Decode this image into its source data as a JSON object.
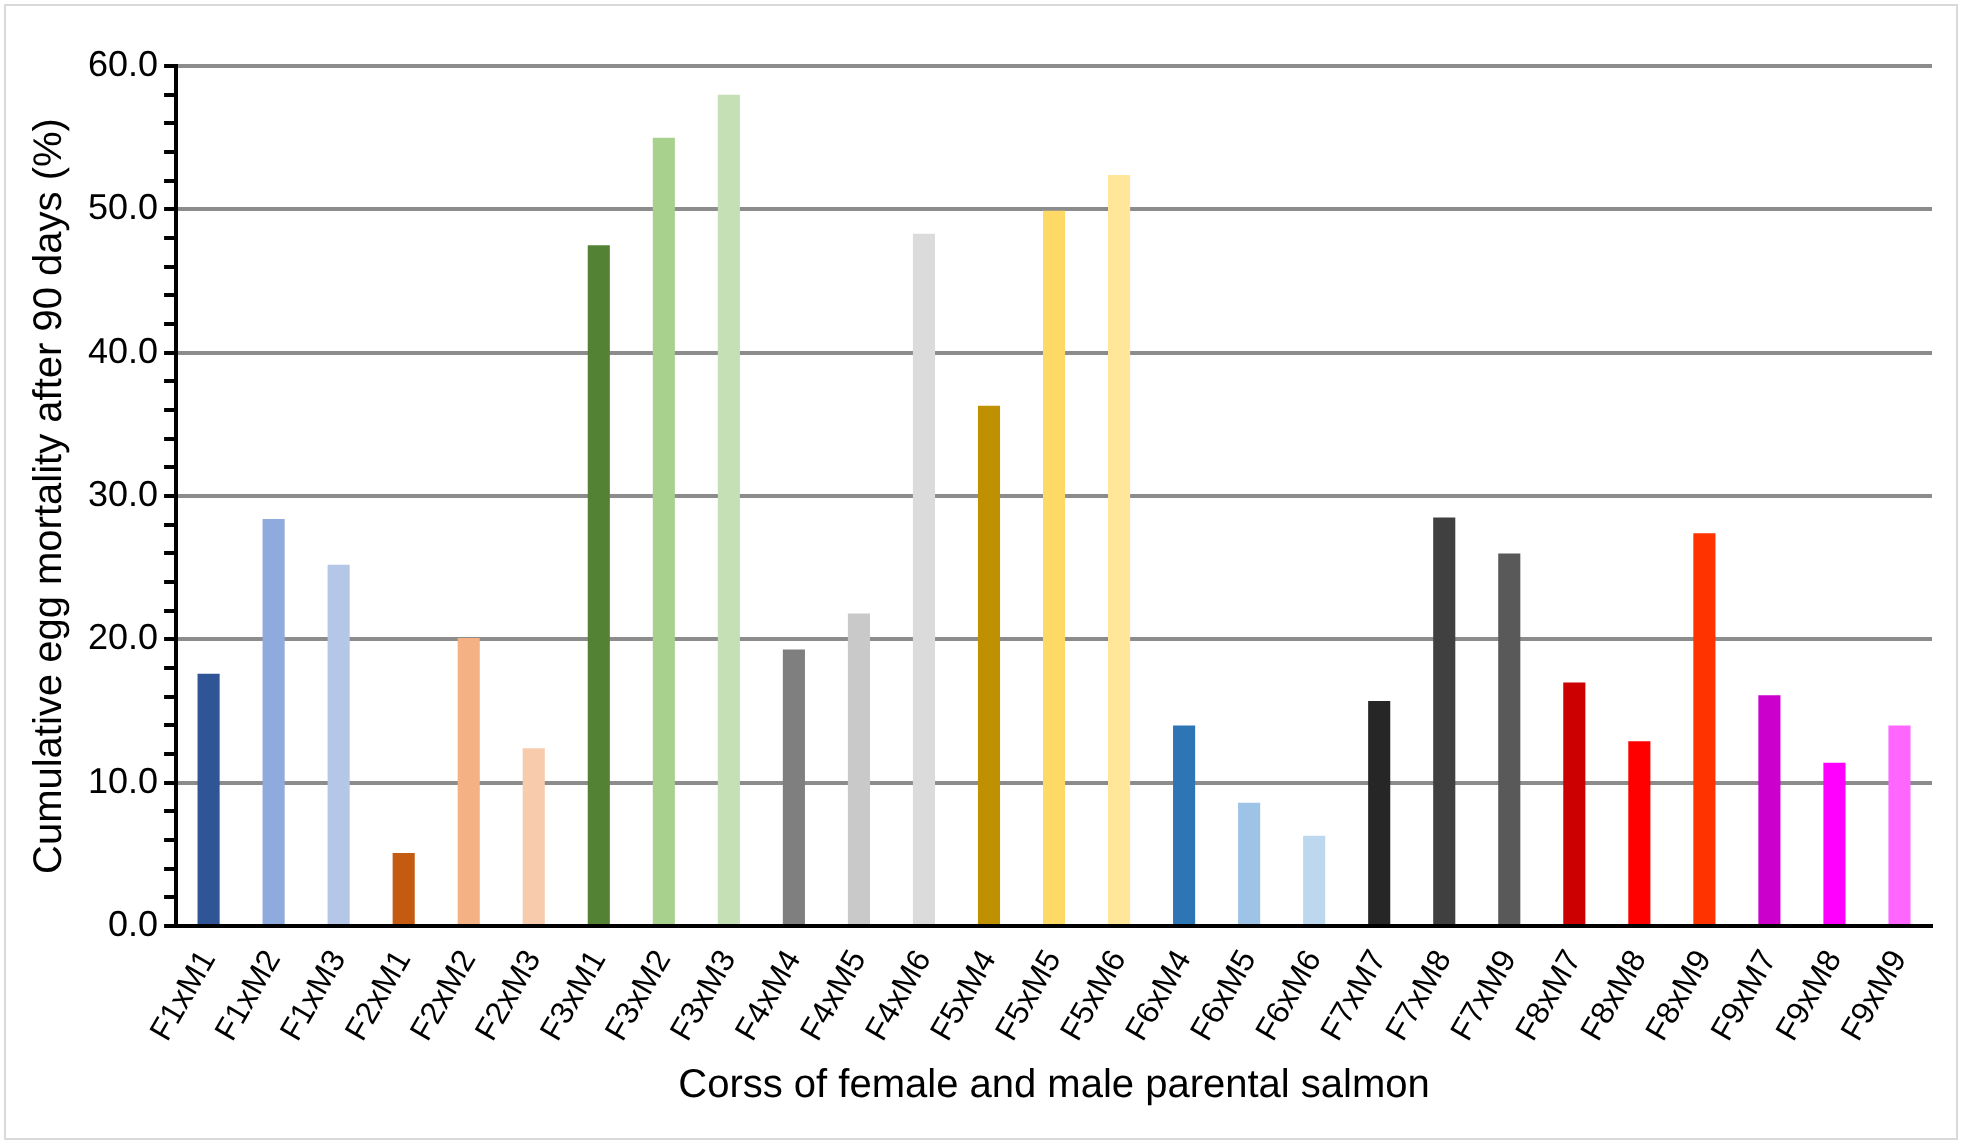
{
  "chart_data": {
    "type": "bar",
    "xlabel": "Corss of female and male parental salmon",
    "ylabel": "Cumulative egg mortality after 90 days (%)",
    "categories": [
      "F1xM1",
      "F1xM2",
      "F1xM3",
      "F2xM1",
      "F2xM2",
      "F2xM3",
      "F3xM1",
      "F3xM2",
      "F3xM3",
      "F4xM4",
      "F4xM5",
      "F4xM6",
      "F5xM4",
      "F5xM5",
      "F5xM6",
      "F6xM4",
      "F6xM5",
      "F6xM6",
      "F7xM7",
      "F7xM8",
      "F7xM9",
      "F8xM7",
      "F8xM8",
      "F8xM9",
      "F9xM7",
      "F9xM8",
      "F9xM9"
    ],
    "values": [
      17.6,
      28.4,
      25.2,
      5.1,
      20.1,
      12.4,
      47.5,
      55.0,
      58.0,
      19.3,
      21.8,
      48.3,
      36.3,
      49.9,
      52.4,
      14.0,
      8.6,
      6.3,
      15.7,
      28.5,
      26.0,
      17.0,
      12.9,
      27.4,
      16.1,
      11.4,
      14.0
    ],
    "colors": [
      "#2f5597",
      "#8faadc",
      "#b4c7e7",
      "#c55a11",
      "#f4b183",
      "#f8cbad",
      "#548235",
      "#a9d18e",
      "#c5e0b4",
      "#7f7f7f",
      "#c9c9c9",
      "#dbdbdb",
      "#bf9000",
      "#ffd966",
      "#ffe699",
      "#2e75b6",
      "#9dc3e6",
      "#bdd7ee",
      "#262626",
      "#404040",
      "#595959",
      "#cc0000",
      "#ff0000",
      "#ff3300",
      "#cc00cc",
      "#ff00ff",
      "#ff66ff"
    ],
    "ylim": [
      0,
      60
    ],
    "yticks": [
      {
        "value": 0,
        "label": "0.0"
      },
      {
        "value": 2,
        "label": null
      },
      {
        "value": 4,
        "label": null
      },
      {
        "value": 6,
        "label": null
      },
      {
        "value": 8,
        "label": null
      },
      {
        "value": 10,
        "label": "10.0"
      },
      {
        "value": 12,
        "label": null
      },
      {
        "value": 14,
        "label": null
      },
      {
        "value": 16,
        "label": null
      },
      {
        "value": 18,
        "label": null
      },
      {
        "value": 20,
        "label": "20.0"
      },
      {
        "value": 22,
        "label": null
      },
      {
        "value": 24,
        "label": null
      },
      {
        "value": 26,
        "label": null
      },
      {
        "value": 28,
        "label": null
      },
      {
        "value": 30,
        "label": "30.0"
      },
      {
        "value": 32,
        "label": null
      },
      {
        "value": 34,
        "label": null
      },
      {
        "value": 36,
        "label": null
      },
      {
        "value": 38,
        "label": null
      },
      {
        "value": 40,
        "label": "40.0"
      },
      {
        "value": 42,
        "label": null
      },
      {
        "value": 44,
        "label": null
      },
      {
        "value": 46,
        "label": null
      },
      {
        "value": 48,
        "label": null
      },
      {
        "value": 50,
        "label": "50.0"
      },
      {
        "value": 52,
        "label": null
      },
      {
        "value": 54,
        "label": null
      },
      {
        "value": 56,
        "label": null
      },
      {
        "value": 58,
        "label": null
      },
      {
        "value": 60,
        "label": "60.0"
      }
    ],
    "grid": "y",
    "legend": false
  }
}
